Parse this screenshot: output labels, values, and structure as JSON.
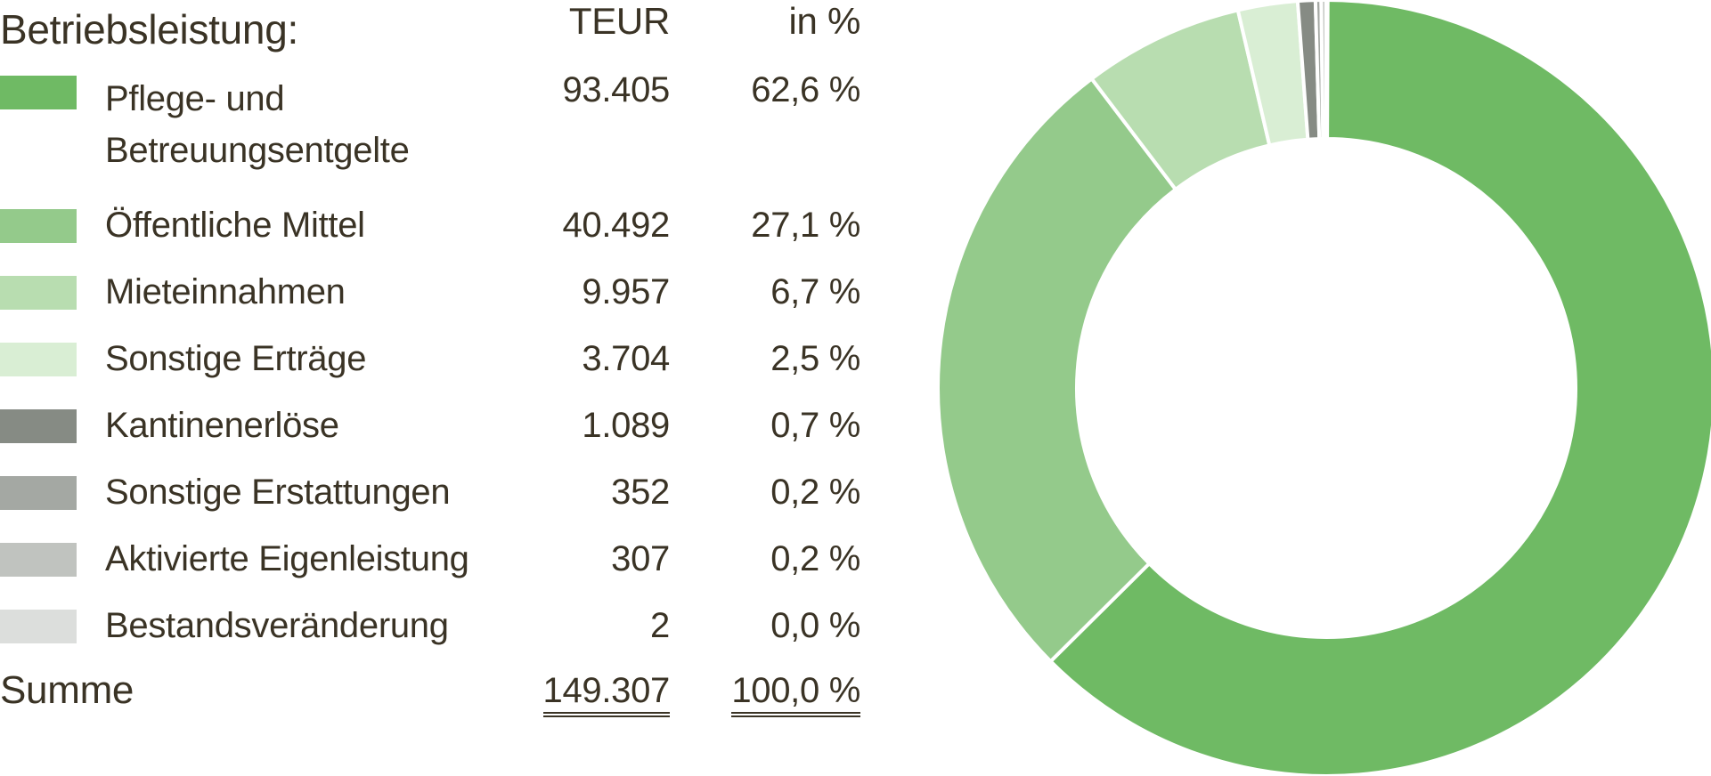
{
  "header": {
    "title": "Betriebsleistung:",
    "col_teur": "TEUR",
    "col_pct": "in %"
  },
  "rows": [
    {
      "label_line1": "Pflege- und",
      "label_line2": "Betreuungsentgelte",
      "teur": "93.405",
      "pct": "62,6 %",
      "color": "#6fba64"
    },
    {
      "label": "Öffentliche Mittel",
      "teur": "40.492",
      "pct": "27,1 %",
      "color": "#94ca8b"
    },
    {
      "label": "Mieteinnahmen",
      "teur": "9.957",
      "pct": "6,7 %",
      "color": "#b8ddb0"
    },
    {
      "label": "Sonstige Erträge",
      "teur": "3.704",
      "pct": "2,5 %",
      "color": "#d9eed4"
    },
    {
      "label": "Kantinenerlöse",
      "teur": "1.089",
      "pct": "0,7 %",
      "color": "#868b84"
    },
    {
      "label": "Sonstige Erstattungen",
      "teur": "352",
      "pct": "0,2 %",
      "color": "#a4a8a3"
    },
    {
      "label": "Aktivierte Eigenleistung",
      "teur": "307",
      "pct": "0,2 %",
      "color": "#c0c3bf"
    },
    {
      "label": "Bestandsveränderung",
      "teur": "2",
      "pct": "0,0 %",
      "color": "#dcdedc"
    }
  ],
  "sum": {
    "label": "Summe",
    "teur": "149.307",
    "pct": "100,0 %"
  },
  "chart_data": {
    "type": "pie",
    "style": "donut",
    "categories": [
      "Pflege- und Betreuungsentgelte",
      "Öffentliche Mittel",
      "Mieteinnahmen",
      "Sonstige Erträge",
      "Kantinenerlöse",
      "Sonstige Erstattungen",
      "Aktivierte Eigenleistung",
      "Bestandsveränderung"
    ],
    "values": [
      93405,
      40492,
      9957,
      3704,
      1089,
      352,
      307,
      2
    ],
    "percent": [
      62.6,
      27.1,
      6.7,
      2.5,
      0.7,
      0.2,
      0.2,
      0.0
    ],
    "colors": [
      "#6fba64",
      "#94ca8b",
      "#b8ddb0",
      "#d9eed4",
      "#868b84",
      "#a4a8a3",
      "#c0c3bf",
      "#dcdedc"
    ],
    "total": 149307,
    "unit": "TEUR",
    "legend": "left"
  }
}
